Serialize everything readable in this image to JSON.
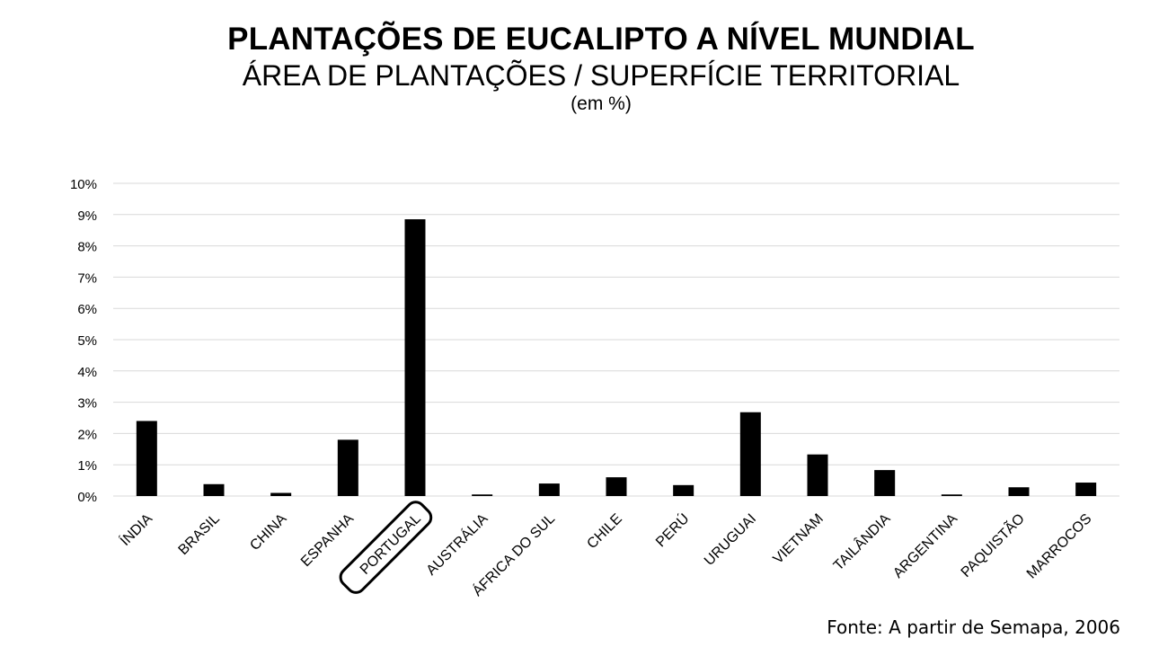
{
  "title": "PLANTAÇÕES DE EUCALIPTO A NÍVEL MUNDIAL",
  "subtitle": "ÁREA DE PLANTAÇÕES / SUPERFÍCIE TERRITORIAL",
  "unit_note": "(em %)",
  "source": "Fonte: A partir de Semapa, 2006",
  "chart_data": {
    "type": "bar",
    "categories": [
      "ÍNDIA",
      "BRASIL",
      "CHINA",
      "ESPANHA",
      "PORTUGAL",
      "AUSTRÁLIA",
      "ÁFRICA DO SUL",
      "CHILE",
      "PERÚ",
      "URUGUAI",
      "VIETNAM",
      "TAILÂNDIA",
      "ARGENTINA",
      "PAQUISTÃO",
      "MARROCOS"
    ],
    "values": [
      2.4,
      0.38,
      0.1,
      1.8,
      8.85,
      0.05,
      0.4,
      0.6,
      0.35,
      2.68,
      1.33,
      0.83,
      0.05,
      0.28,
      0.43
    ],
    "ylim": [
      0,
      10
    ],
    "yticks": [
      0,
      1,
      2,
      3,
      4,
      5,
      6,
      7,
      8,
      9,
      10
    ],
    "ytick_labels": [
      "0%",
      "1%",
      "2%",
      "3%",
      "4%",
      "5%",
      "6%",
      "7%",
      "8%",
      "9%",
      "10%"
    ],
    "highlighted_category": "PORTUGAL",
    "grid": true,
    "bar_color": "#000000",
    "grid_color": "#d9d9d9"
  }
}
